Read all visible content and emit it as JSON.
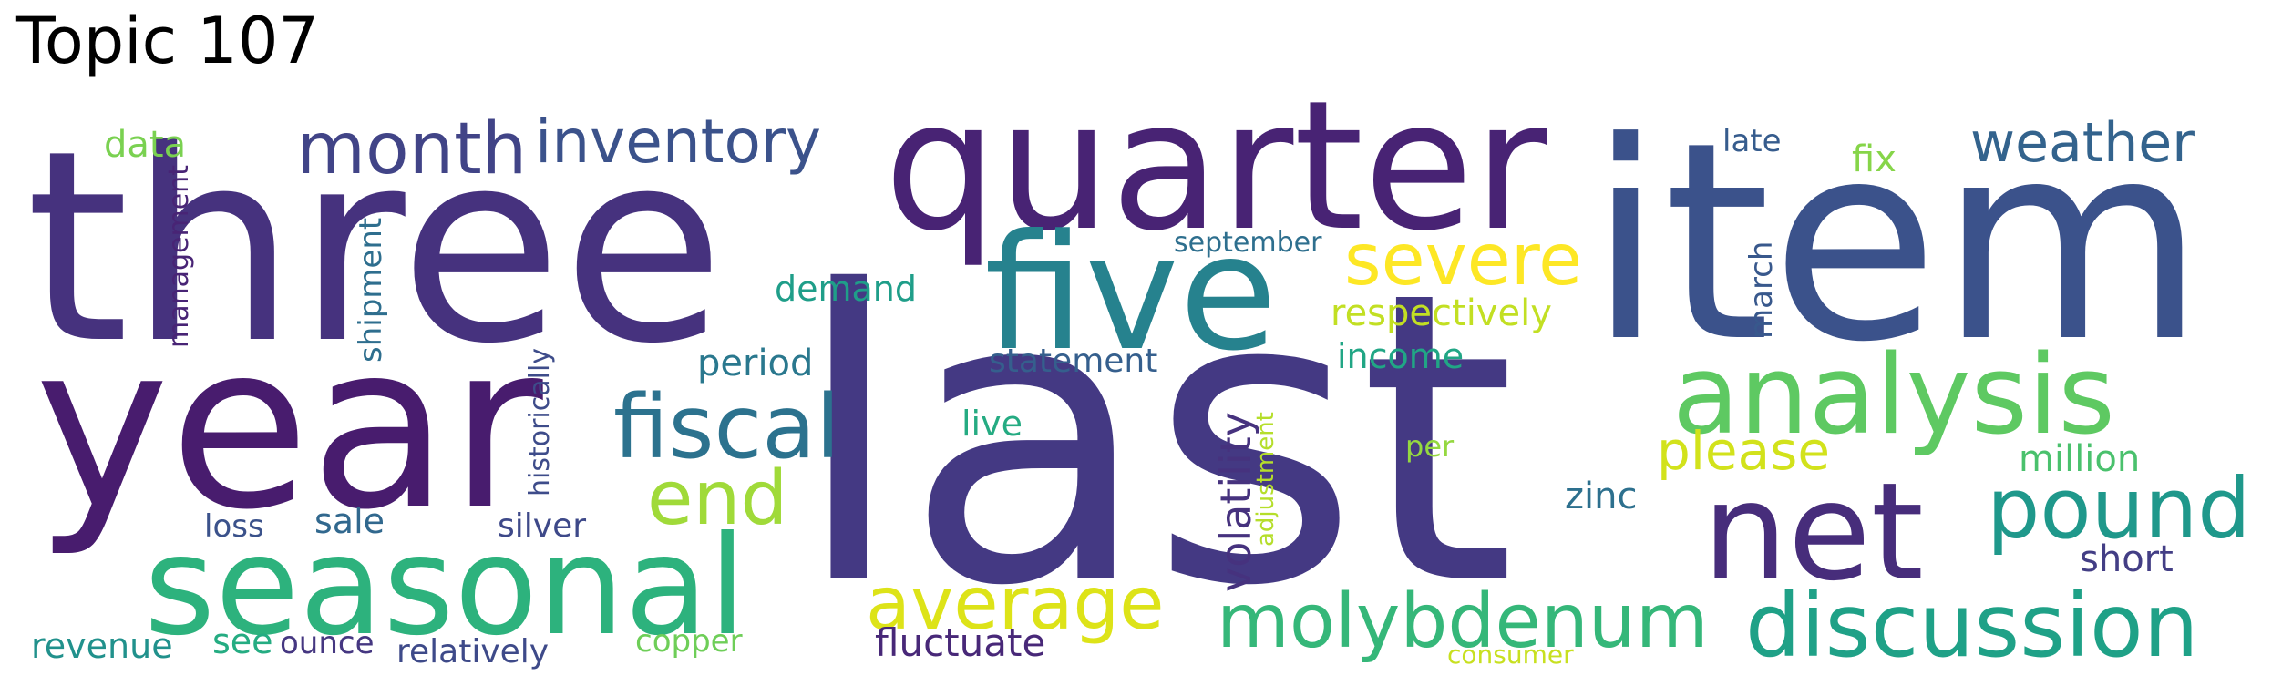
{
  "title": "Topic 107",
  "words": [
    {
      "text": "three",
      "color": "#46327e"
    },
    {
      "text": "year",
      "color": "#481c6e"
    },
    {
      "text": "last",
      "color": "#443983"
    },
    {
      "text": "quarter",
      "color": "#482374"
    },
    {
      "text": "item",
      "color": "#3b528b"
    },
    {
      "text": "five",
      "color": "#26828e"
    },
    {
      "text": "seasonal",
      "color": "#2db27d"
    },
    {
      "text": "analysis",
      "color": "#5ec962"
    },
    {
      "text": "net",
      "color": "#472d7b"
    },
    {
      "text": "fiscal",
      "color": "#2c728e"
    },
    {
      "text": "discussion",
      "color": "#1fa187"
    },
    {
      "text": "molybdenum",
      "color": "#35b779"
    },
    {
      "text": "pound",
      "color": "#1f988b"
    },
    {
      "text": "average",
      "color": "#dde318"
    },
    {
      "text": "month",
      "color": "#414487"
    },
    {
      "text": "inventory",
      "color": "#3b528b"
    },
    {
      "text": "severe",
      "color": "#fde725"
    },
    {
      "text": "end",
      "color": "#a0da39"
    },
    {
      "text": "weather",
      "color": "#33638d"
    },
    {
      "text": "please",
      "color": "#d2e21b"
    },
    {
      "text": "volatility",
      "color": "#46327e"
    },
    {
      "text": "respectively",
      "color": "#c2df23"
    },
    {
      "text": "fluctuate",
      "color": "#482878"
    },
    {
      "text": "revenue",
      "color": "#21918c"
    },
    {
      "text": "million",
      "color": "#4ac16d"
    },
    {
      "text": "relatively",
      "color": "#3e4a89"
    },
    {
      "text": "income",
      "color": "#21a685"
    },
    {
      "text": "statement",
      "color": "#355f8d"
    },
    {
      "text": "demand",
      "color": "#1f9e89"
    },
    {
      "text": "period",
      "color": "#2a788e"
    },
    {
      "text": "zinc",
      "color": "#2d708e"
    },
    {
      "text": "short",
      "color": "#433e85"
    },
    {
      "text": "copper",
      "color": "#6ece58"
    },
    {
      "text": "silver",
      "color": "#3e4989"
    },
    {
      "text": "sale",
      "color": "#31688e"
    },
    {
      "text": "loss",
      "color": "#3b528b"
    },
    {
      "text": "see",
      "color": "#25ac82"
    },
    {
      "text": "ounce",
      "color": "#453781"
    },
    {
      "text": "live",
      "color": "#25ab82"
    },
    {
      "text": "shipment",
      "color": "#2e6e8e"
    },
    {
      "text": "march",
      "color": "#38588c"
    },
    {
      "text": "fix",
      "color": "#86d549"
    },
    {
      "text": "data",
      "color": "#7ad151"
    },
    {
      "text": "late",
      "color": "#365c8d"
    },
    {
      "text": "per",
      "color": "#95d840"
    },
    {
      "text": "september",
      "color": "#2e6f8e"
    },
    {
      "text": "historically",
      "color": "#3e4c8a"
    },
    {
      "text": "adjustment",
      "color": "#b5de2b"
    },
    {
      "text": "management",
      "color": "#482475"
    },
    {
      "text": "consumer",
      "color": "#c8e020"
    }
  ]
}
